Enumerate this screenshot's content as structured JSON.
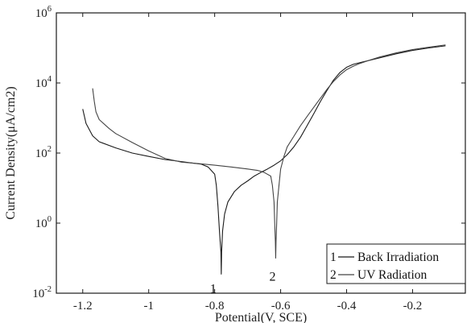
{
  "chart_data": {
    "type": "line",
    "title": "",
    "xlabel": "Potential(V, SCE)",
    "ylabel": "Current Density(μA/cm2)",
    "xlim": [
      -1.28,
      -0.04
    ],
    "ylim_log10": [
      -2,
      6
    ],
    "y_scale": "log",
    "x_ticks": [
      -1.2,
      -1.0,
      -0.8,
      -0.6,
      -0.4,
      -0.2
    ],
    "x_tick_labels": [
      "-1.2",
      "-1",
      "-0.8",
      "-0.6",
      "-0.4",
      "-0.2"
    ],
    "y_ticks_log10": [
      -2,
      0,
      2,
      4,
      6
    ],
    "y_tick_bases": [
      "10",
      "10",
      "10",
      "10",
      "10"
    ],
    "y_tick_exps": [
      "-2",
      "0",
      "2",
      "4",
      "6"
    ],
    "grid": false,
    "legend_position": "bottom-right",
    "series": [
      {
        "name": "Back Irradiation",
        "number_label": "1",
        "color": "#1a1a1a",
        "points": [
          [
            -1.2,
            1800
          ],
          [
            -1.19,
            700
          ],
          [
            -1.17,
            310
          ],
          [
            -1.15,
            210
          ],
          [
            -1.1,
            140
          ],
          [
            -1.05,
            100
          ],
          [
            -1.0,
            80
          ],
          [
            -0.95,
            65
          ],
          [
            -0.9,
            57
          ],
          [
            -0.87,
            52
          ],
          [
            -0.84,
            48
          ],
          [
            -0.82,
            40
          ],
          [
            -0.8,
            25
          ],
          [
            -0.795,
            12
          ],
          [
            -0.79,
            3
          ],
          [
            -0.785,
            0.5
          ],
          [
            -0.781,
            0.15
          ],
          [
            -0.78,
            0.035
          ],
          [
            -0.779,
            0.15
          ],
          [
            -0.776,
            0.6
          ],
          [
            -0.77,
            1.8
          ],
          [
            -0.76,
            4
          ],
          [
            -0.74,
            8
          ],
          [
            -0.72,
            12
          ],
          [
            -0.7,
            16
          ],
          [
            -0.68,
            22
          ],
          [
            -0.66,
            28
          ],
          [
            -0.64,
            35
          ],
          [
            -0.62,
            45
          ],
          [
            -0.6,
            60
          ],
          [
            -0.58,
            90
          ],
          [
            -0.56,
            150
          ],
          [
            -0.54,
            280
          ],
          [
            -0.52,
            600
          ],
          [
            -0.5,
            1300
          ],
          [
            -0.48,
            2900
          ],
          [
            -0.46,
            6000
          ],
          [
            -0.44,
            12000
          ],
          [
            -0.42,
            20000
          ],
          [
            -0.4,
            28000
          ],
          [
            -0.38,
            34000
          ],
          [
            -0.35,
            40000
          ],
          [
            -0.3,
            52000
          ],
          [
            -0.25,
            68000
          ],
          [
            -0.2,
            85000
          ],
          [
            -0.15,
            100000
          ],
          [
            -0.1,
            115000
          ]
        ]
      },
      {
        "name": "UV Radiation",
        "number_label": "2",
        "color": "#444444",
        "points": [
          [
            -1.17,
            7000
          ],
          [
            -1.165,
            3000
          ],
          [
            -1.16,
            1500
          ],
          [
            -1.15,
            900
          ],
          [
            -1.12,
            500
          ],
          [
            -1.1,
            360
          ],
          [
            -1.05,
            200
          ],
          [
            -1.0,
            115
          ],
          [
            -0.95,
            70
          ],
          [
            -0.9,
            55
          ],
          [
            -0.85,
            50
          ],
          [
            -0.8,
            45
          ],
          [
            -0.75,
            40
          ],
          [
            -0.7,
            35
          ],
          [
            -0.67,
            32
          ],
          [
            -0.65,
            28
          ],
          [
            -0.63,
            22
          ],
          [
            -0.625,
            12
          ],
          [
            -0.62,
            4
          ],
          [
            -0.618,
            1
          ],
          [
            -0.616,
            0.3
          ],
          [
            -0.615,
            0.1
          ],
          [
            -0.614,
            0.3
          ],
          [
            -0.612,
            1
          ],
          [
            -0.61,
            4
          ],
          [
            -0.605,
            12
          ],
          [
            -0.6,
            35
          ],
          [
            -0.59,
            80
          ],
          [
            -0.58,
            150
          ],
          [
            -0.56,
            300
          ],
          [
            -0.54,
            600
          ],
          [
            -0.52,
            1100
          ],
          [
            -0.5,
            2000
          ],
          [
            -0.48,
            3600
          ],
          [
            -0.46,
            6500
          ],
          [
            -0.44,
            11000
          ],
          [
            -0.42,
            17000
          ],
          [
            -0.4,
            24000
          ],
          [
            -0.38,
            30000
          ],
          [
            -0.36,
            36000
          ],
          [
            -0.33,
            45000
          ],
          [
            -0.3,
            55000
          ],
          [
            -0.25,
            72000
          ],
          [
            -0.2,
            90000
          ],
          [
            -0.15,
            105000
          ],
          [
            -0.1,
            122000
          ]
        ]
      }
    ],
    "annotations": [
      {
        "text": "1",
        "x": -0.79,
        "y_log10": -1.9
      },
      {
        "text": "2",
        "x": -0.61,
        "y_log10": -1.55
      }
    ],
    "legend": [
      {
        "number": "1",
        "label": "Back Irradiation"
      },
      {
        "number": "2",
        "label": "UV Radiation"
      }
    ]
  }
}
